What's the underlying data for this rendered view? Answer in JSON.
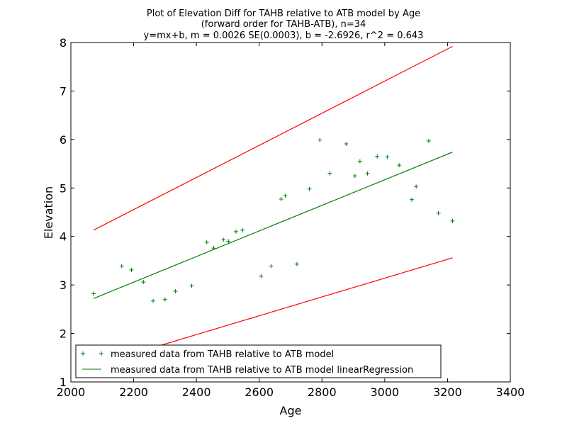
{
  "chart_data": {
    "type": "scatter",
    "title_lines": [
      "Plot of Elevation Diff for TAHB relative to ATB model by Age",
      "(forward order for TAHB-ATB), n=34",
      "y=mx+b, m = 0.0026 SE(0.0003), b = -2.6926, r^2 = 0.643"
    ],
    "xlabel": "Age",
    "ylabel": "Elevation",
    "xlim": [
      2000,
      3400
    ],
    "ylim": [
      1,
      8
    ],
    "xticks": [
      2000,
      2200,
      2400,
      2600,
      2800,
      3000,
      3200,
      3400
    ],
    "yticks": [
      1,
      2,
      3,
      4,
      5,
      6,
      7,
      8
    ],
    "grid": false,
    "legend_position": "lower-left",
    "colors": {
      "data": "#008000",
      "regression": "#008000",
      "bounds": "#ff0000"
    },
    "series": [
      {
        "name": "measured data from TAHB relative to ATB model",
        "marker": "+",
        "points": [
          [
            2072,
            2.82
          ],
          [
            2162,
            3.39
          ],
          [
            2193,
            3.31
          ],
          [
            2231,
            3.06
          ],
          [
            2262,
            2.67
          ],
          [
            2300,
            2.7
          ],
          [
            2333,
            2.87
          ],
          [
            2385,
            2.98
          ],
          [
            2433,
            3.88
          ],
          [
            2455,
            3.76
          ],
          [
            2486,
            3.93
          ],
          [
            2502,
            3.9
          ],
          [
            2526,
            4.1
          ],
          [
            2547,
            4.13
          ],
          [
            2606,
            3.18
          ],
          [
            2638,
            3.39
          ],
          [
            2670,
            4.77
          ],
          [
            2683,
            4.84
          ],
          [
            2720,
            3.43
          ],
          [
            2760,
            4.98
          ],
          [
            2793,
            5.99
          ],
          [
            2825,
            5.3
          ],
          [
            2877,
            5.91
          ],
          [
            2905,
            5.25
          ],
          [
            2921,
            5.55
          ],
          [
            2945,
            5.3
          ],
          [
            2976,
            5.65
          ],
          [
            3008,
            5.64
          ],
          [
            3046,
            5.47
          ],
          [
            3086,
            4.76
          ],
          [
            3100,
            5.03
          ],
          [
            3140,
            5.97
          ],
          [
            3171,
            4.48
          ],
          [
            3216,
            4.32
          ]
        ]
      },
      {
        "name": "measured data from TAHB relative to ATB model linearRegression",
        "type": "line",
        "points": [
          [
            2072,
            2.72
          ],
          [
            3216,
            5.74
          ]
        ]
      },
      {
        "type": "line",
        "points": [
          [
            2072,
            4.13
          ],
          [
            3216,
            7.92
          ]
        ]
      },
      {
        "type": "line",
        "points": [
          [
            2072,
            1.34
          ],
          [
            3216,
            3.56
          ]
        ]
      }
    ]
  }
}
